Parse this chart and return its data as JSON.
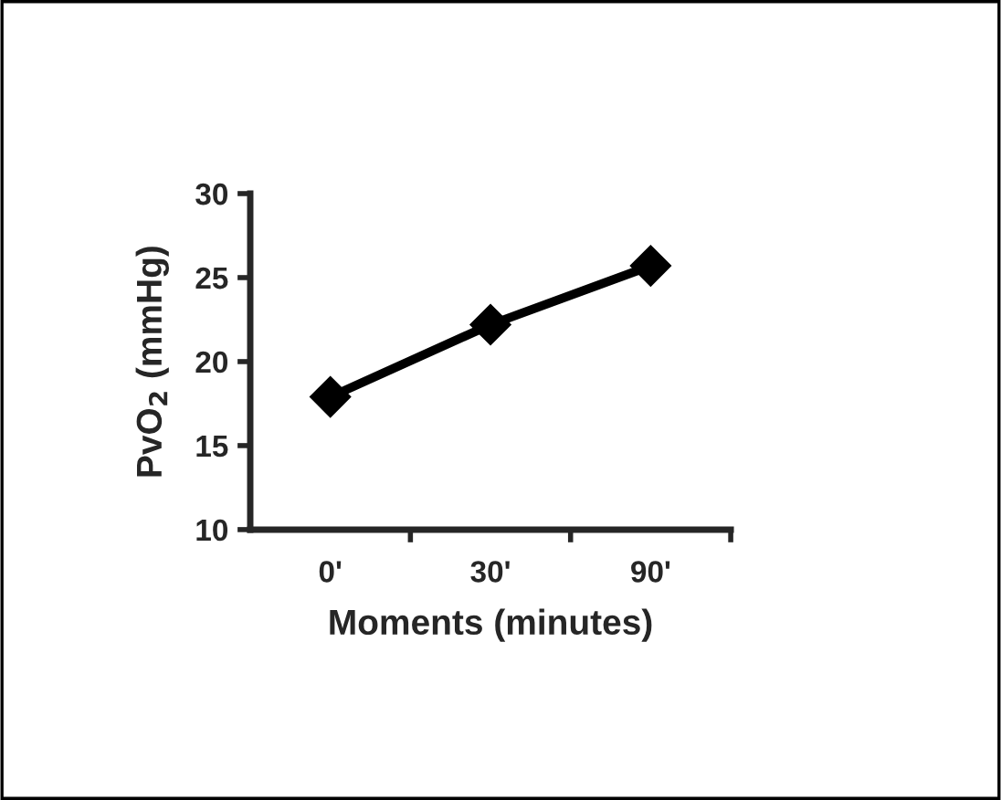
{
  "chart_data": {
    "type": "line",
    "xlabel": "Moments (minutes)",
    "ylabel": "PvO$_{2}$ (mmHg)",
    "categories": [
      "0'",
      "30'",
      "90'"
    ],
    "series": [
      {
        "color": "#000000",
        "values": [
          17.9,
          22.2,
          25.7
        ]
      }
    ],
    "ylim": [
      10,
      30
    ],
    "yticks": [
      10,
      15,
      20,
      25,
      30
    ],
    "grid": false,
    "legend": false,
    "marker": "diamond",
    "line_style": "solid"
  }
}
